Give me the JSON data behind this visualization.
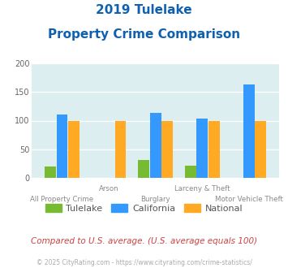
{
  "title_line1": "2019 Tulelake",
  "title_line2": "Property Crime Comparison",
  "title_color": "#1060b0",
  "categories": [
    "All Property Crime",
    "Arson",
    "Burglary",
    "Larceny & Theft",
    "Motor Vehicle Theft"
  ],
  "tulelake": [
    20,
    0,
    32,
    22,
    0
  ],
  "california": [
    110,
    0,
    113,
    103,
    163
  ],
  "national": [
    100,
    100,
    100,
    100,
    100
  ],
  "tulelake_color": "#77bb33",
  "california_color": "#3399ff",
  "national_color": "#ffaa22",
  "ylim": [
    0,
    200
  ],
  "yticks": [
    0,
    50,
    100,
    150,
    200
  ],
  "bg_color": "#ddeef0",
  "fig_bg": "#ffffff",
  "footnote": "Compared to U.S. average. (U.S. average equals 100)",
  "footnote_color": "#cc4444",
  "copyright": "© 2025 CityRating.com - https://www.cityrating.com/crime-statistics/",
  "copyright_color": "#aaaaaa",
  "legend_labels": [
    "Tulelake",
    "California",
    "National"
  ],
  "xlabel_top": [
    "",
    "Arson",
    "",
    "Larceny & Theft",
    ""
  ],
  "xlabel_bot": [
    "All Property Crime",
    "",
    "Burglary",
    "",
    "Motor Vehicle Theft"
  ]
}
